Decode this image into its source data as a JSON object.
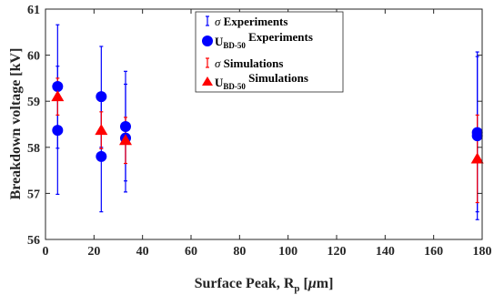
{
  "chart_data": {
    "type": "scatter",
    "xlabel": "Surface Peak, R",
    "xlabel_sub": "p",
    "xlabel_unit": " [",
    "xlabel_mu": "μ",
    "xlabel_tail": "m]",
    "ylabel": "Breakdown voltage [kV]",
    "xlim": [
      0,
      180
    ],
    "ylim": [
      56,
      61
    ],
    "xticks": [
      0,
      20,
      40,
      60,
      80,
      100,
      120,
      140,
      160,
      180
    ],
    "yticks": [
      56,
      57,
      58,
      59,
      60,
      61
    ],
    "legend_position": "top-center",
    "legend": [
      {
        "sym": "σ",
        "text": " Experiments"
      },
      {
        "main": "U",
        "sub": "BD-50",
        "text": " Experiments"
      },
      {
        "sym": "σ",
        "text": " Simulations"
      },
      {
        "main": "U",
        "sub": "BD-50",
        "text": " Simulations"
      }
    ],
    "colors": {
      "experiments": "#0000ff",
      "simulations": "#ff0000",
      "axis": "#262626"
    },
    "series": [
      {
        "name": "Experiments",
        "marker": "circle",
        "points": [
          {
            "x": 5,
            "y": 59.32,
            "lo": 57.98,
            "hi": 60.66
          },
          {
            "x": 5,
            "y": 58.37,
            "lo": 56.98,
            "hi": 59.76
          },
          {
            "x": 23,
            "y": 59.1,
            "lo": 58.0,
            "hi": 60.19
          },
          {
            "x": 23,
            "y": 57.8,
            "lo": 56.6,
            "hi": 59.0
          },
          {
            "x": 33,
            "y": 58.45,
            "lo": 57.27,
            "hi": 59.65
          },
          {
            "x": 33,
            "y": 58.2,
            "lo": 57.03,
            "hi": 59.37
          },
          {
            "x": 178,
            "y": 58.32,
            "lo": 56.6,
            "hi": 60.07
          },
          {
            "x": 178,
            "y": 58.25,
            "lo": 56.43,
            "hi": 59.97
          }
        ]
      },
      {
        "name": "Simulations",
        "marker": "triangle",
        "points": [
          {
            "x": 5,
            "y": 59.1,
            "lo": 58.7,
            "hi": 59.5
          },
          {
            "x": 23,
            "y": 58.37,
            "lo": 57.97,
            "hi": 58.77
          },
          {
            "x": 33,
            "y": 58.15,
            "lo": 57.65,
            "hi": 58.65
          },
          {
            "x": 178,
            "y": 57.75,
            "lo": 56.8,
            "hi": 58.7
          }
        ]
      }
    ]
  }
}
